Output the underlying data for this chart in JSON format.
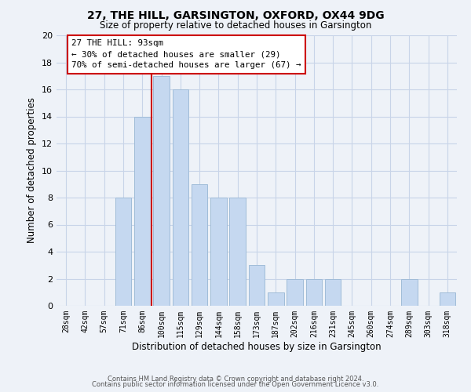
{
  "title": "27, THE HILL, GARSINGTON, OXFORD, OX44 9DG",
  "subtitle": "Size of property relative to detached houses in Garsington",
  "xlabel": "Distribution of detached houses by size in Garsington",
  "ylabel": "Number of detached properties",
  "categories": [
    "28sqm",
    "42sqm",
    "57sqm",
    "71sqm",
    "86sqm",
    "100sqm",
    "115sqm",
    "129sqm",
    "144sqm",
    "158sqm",
    "173sqm",
    "187sqm",
    "202sqm",
    "216sqm",
    "231sqm",
    "245sqm",
    "260sqm",
    "274sqm",
    "289sqm",
    "303sqm",
    "318sqm"
  ],
  "values": [
    0,
    0,
    0,
    8,
    14,
    17,
    16,
    9,
    8,
    8,
    3,
    1,
    2,
    2,
    2,
    0,
    0,
    0,
    2,
    0,
    1
  ],
  "bar_color": "#c5d8f0",
  "bar_edge_color": "#a0bcd8",
  "marker_index": 5,
  "marker_line_color": "#cc0000",
  "annotation_title": "27 THE HILL: 93sqm",
  "annotation_line1": "← 30% of detached houses are smaller (29)",
  "annotation_line2": "70% of semi-detached houses are larger (67) →",
  "annotation_box_edge": "#cc0000",
  "ylim": [
    0,
    20
  ],
  "yticks": [
    0,
    2,
    4,
    6,
    8,
    10,
    12,
    14,
    16,
    18,
    20
  ],
  "grid_color": "#c8d4e8",
  "footer1": "Contains HM Land Registry data © Crown copyright and database right 2024.",
  "footer2": "Contains public sector information licensed under the Open Government Licence v3.0.",
  "bg_color": "#eef2f8",
  "plot_bg_color": "#eef2f8"
}
